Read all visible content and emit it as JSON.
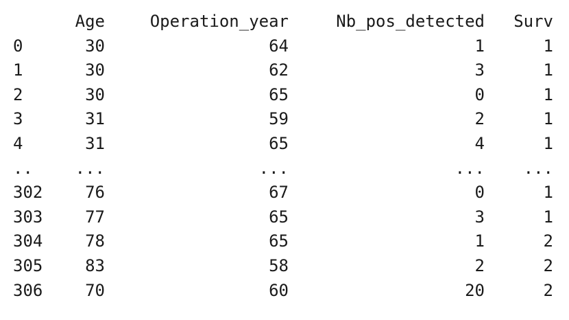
{
  "table": {
    "columns": [
      "",
      "Age",
      "Operation_year",
      "Nb_pos_detected",
      "Surv"
    ],
    "rows": [
      [
        "0",
        "30",
        "64",
        "1",
        "1"
      ],
      [
        "1",
        "30",
        "62",
        "3",
        "1"
      ],
      [
        "2",
        "30",
        "65",
        "0",
        "1"
      ],
      [
        "3",
        "31",
        "59",
        "2",
        "1"
      ],
      [
        "4",
        "31",
        "65",
        "4",
        "1"
      ],
      [
        "..",
        "...",
        "...",
        "...",
        "..."
      ],
      [
        "302",
        "76",
        "67",
        "0",
        "1"
      ],
      [
        "303",
        "77",
        "65",
        "3",
        "1"
      ],
      [
        "304",
        "78",
        "65",
        "1",
        "2"
      ],
      [
        "305",
        "83",
        "58",
        "2",
        "2"
      ],
      [
        "306",
        "70",
        "60",
        "20",
        "2"
      ]
    ]
  }
}
